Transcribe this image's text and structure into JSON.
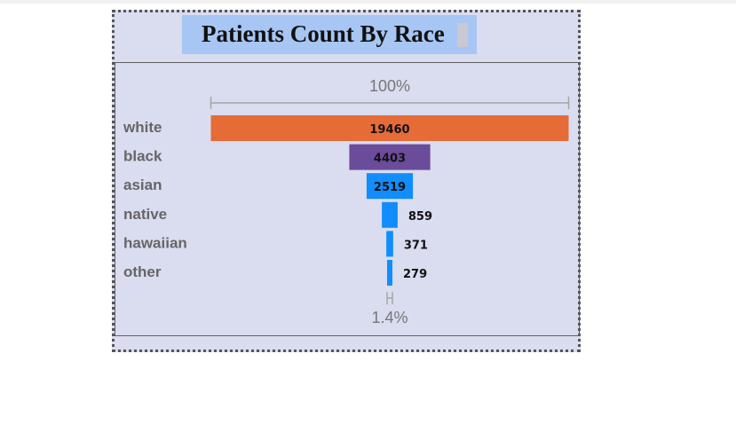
{
  "page": {
    "background": "#ffffff"
  },
  "visual": {
    "background": "#dadcf0",
    "title": "Patients Count By Race",
    "title_background": "#a7c6f4"
  },
  "chart_data": {
    "type": "bar",
    "subtype": "funnel",
    "title": "Patients Count By Race",
    "categories": [
      "white",
      "black",
      "asian",
      "native",
      "hawaiian",
      "other"
    ],
    "values": [
      19460,
      4403,
      2519,
      859,
      371,
      279
    ],
    "colors": [
      "#e66c37",
      "#6b4c9a",
      "#118dff",
      "#118dff",
      "#118dff",
      "#118dff"
    ],
    "top_percent_label": "100%",
    "bottom_percent_label": "1.4%",
    "legend": "none",
    "grid": false
  }
}
